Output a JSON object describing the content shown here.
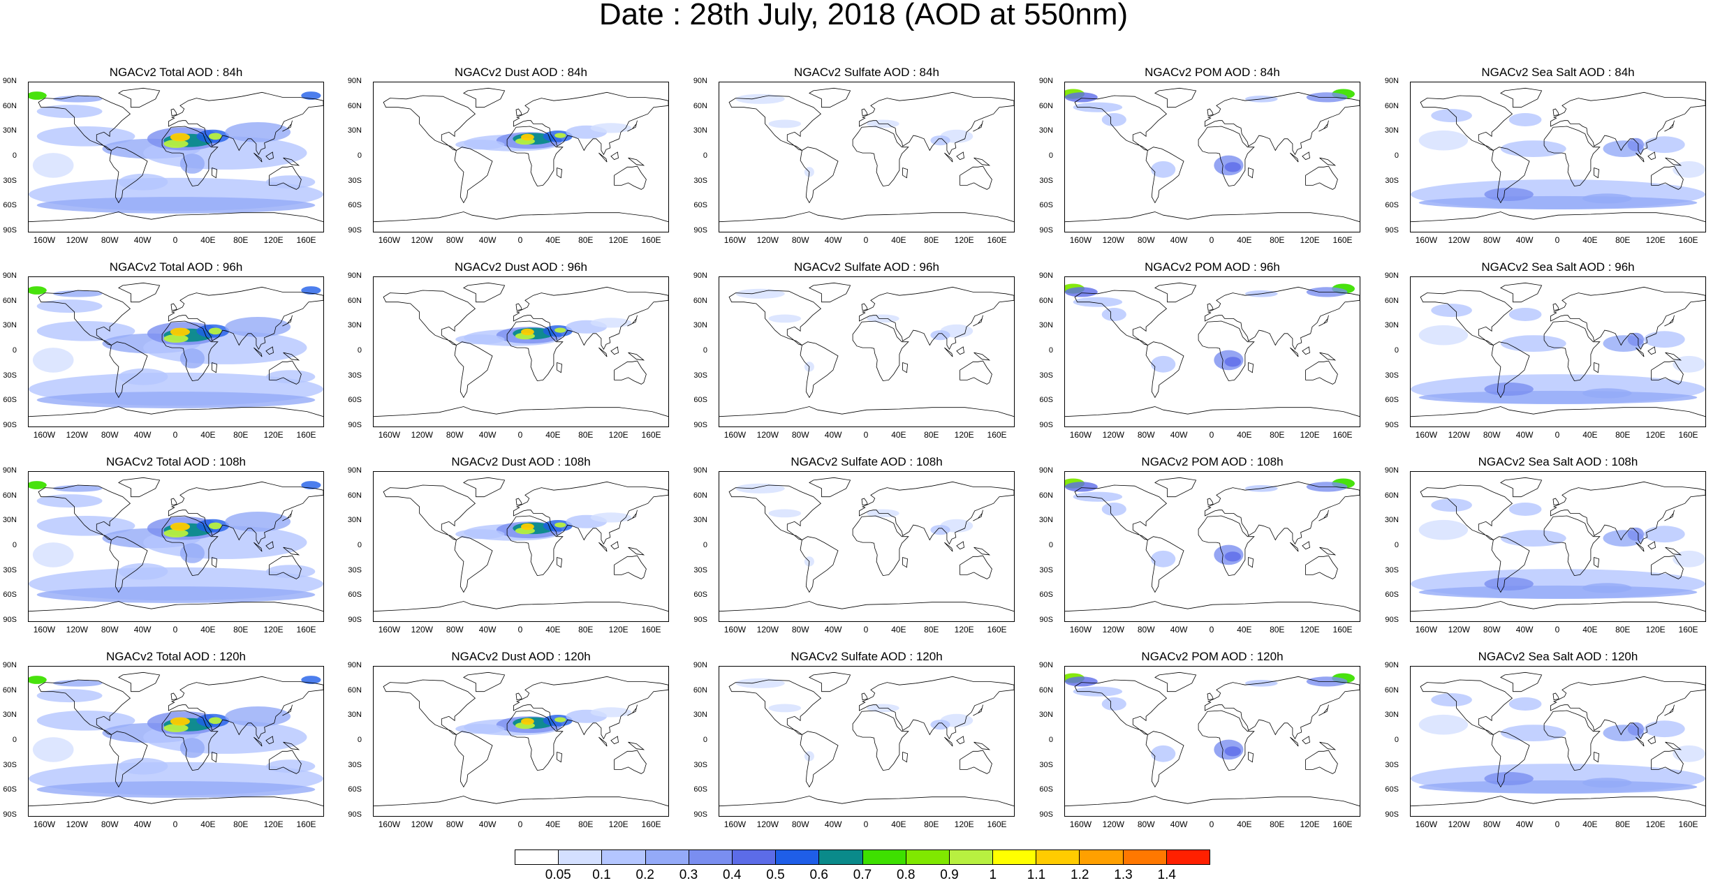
{
  "title": "Date : 28th July, 2018 (AOD at 550nm)",
  "latitude_labels": [
    "90N",
    "60N",
    "30N",
    "0",
    "30S",
    "60S",
    "90S"
  ],
  "longitude_labels": [
    "160W",
    "120W",
    "80W",
    "40W",
    "0",
    "40E",
    "80E",
    "120E",
    "160E"
  ],
  "panels": [
    {
      "title": "NGACv2 Total AOD : 84h",
      "species": "total"
    },
    {
      "title": "NGACv2 Dust AOD : 84h",
      "species": "dust"
    },
    {
      "title": "NGACv2 Sulfate AOD : 84h",
      "species": "sulfate"
    },
    {
      "title": "NGACv2 POM AOD : 84h",
      "species": "pom"
    },
    {
      "title": "NGACv2 Sea Salt AOD : 84h",
      "species": "seasalt"
    },
    {
      "title": "NGACv2 Total AOD : 96h",
      "species": "total"
    },
    {
      "title": "NGACv2 Dust AOD : 96h",
      "species": "dust"
    },
    {
      "title": "NGACv2 Sulfate AOD : 96h",
      "species": "sulfate"
    },
    {
      "title": "NGACv2 POM AOD : 96h",
      "species": "pom"
    },
    {
      "title": "NGACv2 Sea Salt AOD : 96h",
      "species": "seasalt"
    },
    {
      "title": "NGACv2 Total AOD : 108h",
      "species": "total"
    },
    {
      "title": "NGACv2 Dust AOD : 108h",
      "species": "dust"
    },
    {
      "title": "NGACv2 Sulfate AOD : 108h",
      "species": "sulfate"
    },
    {
      "title": "NGACv2 POM AOD : 108h",
      "species": "pom"
    },
    {
      "title": "NGACv2 Sea Salt AOD : 108h",
      "species": "seasalt"
    },
    {
      "title": "NGACv2 Total AOD : 120h",
      "species": "total"
    },
    {
      "title": "NGACv2 Dust AOD : 120h",
      "species": "dust"
    },
    {
      "title": "NGACv2 Sulfate AOD : 120h",
      "species": "sulfate"
    },
    {
      "title": "NGACv2 POM AOD : 120h",
      "species": "pom"
    },
    {
      "title": "NGACv2 Sea Salt  AOD : 120h",
      "species": "seasalt"
    }
  ],
  "colorbar": {
    "labels": [
      "0.05",
      "0.1",
      "0.2",
      "0.3",
      "0.4",
      "0.5",
      "0.6",
      "0.7",
      "0.8",
      "0.9",
      "1",
      "1.1",
      "1.2",
      "1.3",
      "1.4"
    ],
    "colors": [
      "#ffffff",
      "#d4e0ff",
      "#b4c6ff",
      "#94aaf8",
      "#7a8ef0",
      "#5c6ce8",
      "#1f5ee8",
      "#0a8a8a",
      "#3ee000",
      "#80e800",
      "#b8f040",
      "#ffff00",
      "#ffcc00",
      "#ffa000",
      "#ff7800",
      "#ff2000"
    ]
  },
  "palette": {
    "border": "#000000",
    "background": "#ffffff"
  }
}
